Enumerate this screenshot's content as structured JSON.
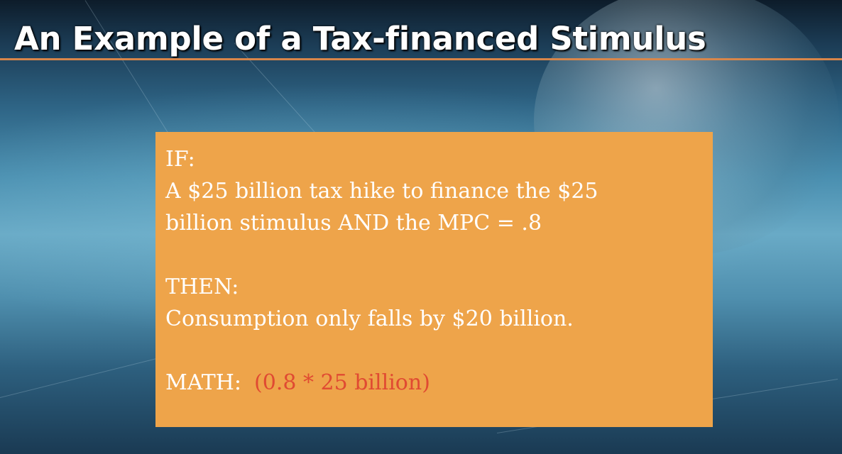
{
  "slide": {
    "title": "An Example of a Tax-financed Stimulus",
    "content": {
      "if_label": "IF:",
      "if_line1": "A $25 billion tax hike to finance the $25",
      "if_line2": "billion stimulus AND the MPC = .8",
      "then_label": "THEN:",
      "then_line": "Consumption only falls by $20 billion.",
      "math_label": "MATH:",
      "math_value": "(0.8 * 25 billion)"
    }
  },
  "colors": {
    "box_background": "#eea44a",
    "text": "#ffffff",
    "math_highlight": "#e04a32",
    "title_rule": "#d8864a"
  }
}
